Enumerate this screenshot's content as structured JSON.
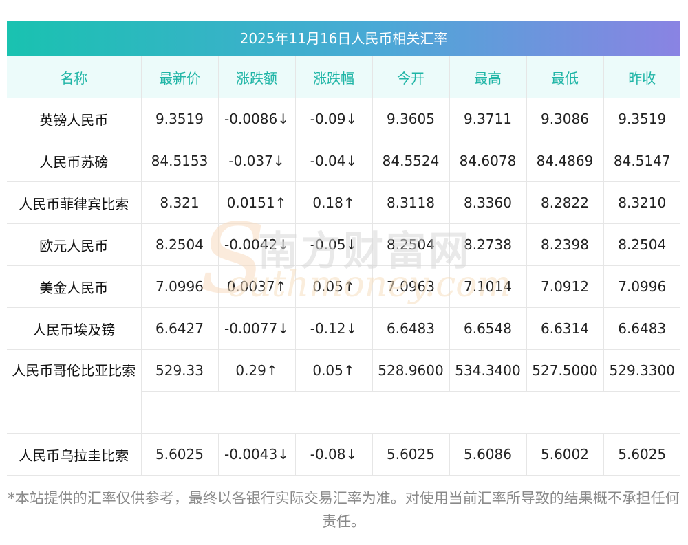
{
  "title": "2025年11月16日人民币相关汇率",
  "headers": [
    "名称",
    "最新价",
    "涨跌额",
    "涨跌幅",
    "今开",
    "最高",
    "最低",
    "昨收"
  ],
  "rows": [
    {
      "name": "英镑人民币",
      "latest": "9.3519",
      "change": "-0.0086↓",
      "change_pct": "-0.09↓",
      "open": "9.3605",
      "high": "9.3711",
      "low": "9.3086",
      "prev_close": "9.3519",
      "direction": "down"
    },
    {
      "name": "人民币苏磅",
      "latest": "84.5153",
      "change": "-0.037↓",
      "change_pct": "-0.04↓",
      "open": "84.5524",
      "high": "84.6078",
      "low": "84.4869",
      "prev_close": "84.5147",
      "direction": "down"
    },
    {
      "name": "人民币菲律宾比索",
      "latest": "8.321",
      "change": "0.0151↑",
      "change_pct": "0.18↑",
      "open": "8.3118",
      "high": "8.3360",
      "low": "8.2822",
      "prev_close": "8.3210",
      "direction": "up"
    },
    {
      "name": "欧元人民币",
      "latest": "8.2504",
      "change": "-0.0042↓",
      "change_pct": "-0.05↓",
      "open": "8.2504",
      "high": "8.2738",
      "low": "8.2398",
      "prev_close": "8.2504",
      "direction": "down"
    },
    {
      "name": "美金人民币",
      "latest": "7.0996",
      "change": "0.0037↑",
      "change_pct": "0.05↑",
      "open": "7.0963",
      "high": "7.1014",
      "low": "7.0912",
      "prev_close": "7.0996",
      "direction": "up"
    },
    {
      "name": "人民币埃及镑",
      "latest": "6.6427",
      "change": "-0.0077↓",
      "change_pct": "-0.12↓",
      "open": "6.6483",
      "high": "6.6548",
      "low": "6.6314",
      "prev_close": "6.6483",
      "direction": "down"
    },
    {
      "name": "人民币哥伦比亚比索",
      "latest": "529.33",
      "change": "0.29↑",
      "change_pct": "0.05↑",
      "open": "528.9600",
      "high": "534.3400",
      "low": "527.5000",
      "prev_close": "529.3300",
      "direction": "up"
    },
    {
      "name": "人民币乌拉圭比索",
      "latest": "5.6025",
      "change": "-0.0043↓",
      "change_pct": "-0.08↓",
      "open": "5.6025",
      "high": "5.6086",
      "low": "5.6002",
      "prev_close": "5.6025",
      "direction": "down"
    }
  ],
  "watermark": {
    "cn": "南方财富网",
    "en": "outhmoney.com",
    "s": "S"
  },
  "footnote": "*本站提供的汇率仅供参考，最终以各银行实际交易汇率为准。对使用当前汇率所导致的结果概不承担任何责任。",
  "colors": {
    "up": "#e0211c",
    "down": "#17890e",
    "header_text": "#1fb5a6",
    "header_bg": "#ecfbfa"
  }
}
